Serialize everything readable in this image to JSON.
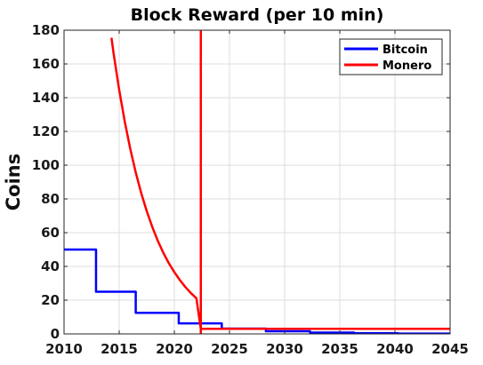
{
  "chart_data": {
    "type": "line",
    "title": "Block Reward (per 10 min)",
    "xlabel": "",
    "ylabel": "Coins",
    "xlim": [
      2010,
      2045
    ],
    "ylim": [
      0,
      180
    ],
    "xticks": [
      2010,
      2015,
      2020,
      2025,
      2030,
      2035,
      2040,
      2045
    ],
    "yticks": [
      0,
      20,
      40,
      60,
      80,
      100,
      120,
      140,
      160,
      180
    ],
    "grid": true,
    "legend": {
      "position": "top-right",
      "entries": [
        "Bitcoin",
        "Monero"
      ]
    },
    "series": [
      {
        "name": "Bitcoin",
        "color": "#0000ff",
        "style": "step",
        "x": [
          2009.0,
          2012.9,
          2012.9,
          2016.5,
          2016.5,
          2020.4,
          2020.4,
          2024.3,
          2024.3,
          2028.3,
          2028.3,
          2032.3,
          2032.3,
          2036.3,
          2036.3,
          2040.3,
          2040.3,
          2045.0
        ],
        "y": [
          50,
          50,
          25,
          25,
          12.5,
          12.5,
          6.25,
          6.25,
          3.125,
          3.125,
          1.5625,
          1.5625,
          0.78,
          0.78,
          0.39,
          0.39,
          0.2,
          0.2
        ]
      },
      {
        "name": "Monero",
        "color": "#ff0000",
        "style": "line",
        "x": [
          2014.3,
          2014.5,
          2015.0,
          2015.5,
          2016.0,
          2016.5,
          2017.0,
          2017.5,
          2018.0,
          2018.5,
          2019.0,
          2019.5,
          2020.0,
          2020.5,
          2021.0,
          2021.5,
          2022.0,
          2022.4,
          2023.0,
          2025.0,
          2030.0,
          2035.0,
          2040.0,
          2045.0
        ],
        "y": [
          175.5,
          165.9,
          144.6,
          126.0,
          109.8,
          95.7,
          83.4,
          72.7,
          63.4,
          55.2,
          48.1,
          41.9,
          36.6,
          31.9,
          27.8,
          24.2,
          21.1,
          3.0,
          3.0,
          3.0,
          3.0,
          3.0,
          3.0,
          3.0
        ]
      }
    ],
    "vline": {
      "x": 2022.4,
      "color": "#ff0000"
    }
  }
}
